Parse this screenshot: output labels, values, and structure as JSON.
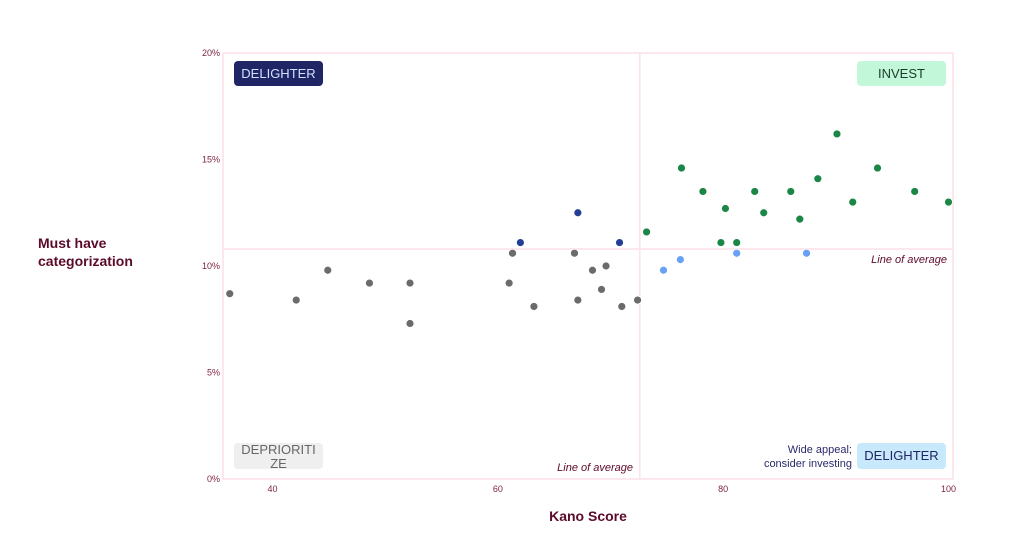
{
  "chart_data": {
    "type": "scatter",
    "xlabel": "Kano Score",
    "ylabel": "Must have categorization",
    "xlim": [
      35.6,
      100.4
    ],
    "ylim": [
      0,
      20
    ],
    "x_ticks": [
      40,
      60,
      80,
      100
    ],
    "y_ticks": [
      0,
      5,
      10,
      15,
      20
    ],
    "y_tick_labels": [
      "0%",
      "5%",
      "10%",
      "15%",
      "20%"
    ],
    "grid": false,
    "average_x": 72.6,
    "average_y": 10.8,
    "average_label": "Line of average",
    "quadrant_labels": {
      "top_left": "DELIGHTER",
      "top_right": "INVEST",
      "bottom_left": "DEPRIORITIZE",
      "bottom_right": "DELIGHTER",
      "bottom_right_note_1": "Wide appeal;",
      "bottom_right_note_2": "consider investing"
    },
    "colors": {
      "deprioritize": "#6b6b6b",
      "delighter_dark": "#233f96",
      "delighter_light": "#69a2f4",
      "invest": "#1b8747",
      "axis_text": "#7a1f3d",
      "frame": "#fbe1e6"
    },
    "series": [
      {
        "name": "deprioritize",
        "color": "#6b6b6b",
        "points": [
          [
            36.2,
            8.7
          ],
          [
            42.1,
            8.4
          ],
          [
            44.9,
            9.8
          ],
          [
            48.6,
            9.2
          ],
          [
            52.2,
            9.2
          ],
          [
            52.2,
            7.3
          ],
          [
            61.0,
            9.2
          ],
          [
            61.3,
            10.6
          ],
          [
            63.2,
            8.1
          ],
          [
            66.8,
            10.6
          ],
          [
            67.1,
            8.4
          ],
          [
            68.4,
            9.8
          ],
          [
            69.2,
            8.9
          ],
          [
            69.6,
            10.0
          ],
          [
            71.0,
            8.1
          ],
          [
            72.4,
            8.4
          ]
        ]
      },
      {
        "name": "delighter_dark",
        "color": "#233f96",
        "points": [
          [
            62.0,
            11.1
          ],
          [
            67.1,
            12.5
          ],
          [
            70.8,
            11.1
          ]
        ]
      },
      {
        "name": "delighter_light",
        "color": "#69a2f4",
        "points": [
          [
            74.7,
            9.8
          ],
          [
            76.2,
            10.3
          ],
          [
            81.2,
            10.6
          ],
          [
            87.4,
            10.6
          ]
        ]
      },
      {
        "name": "invest",
        "color": "#1b8747",
        "points": [
          [
            73.2,
            11.6
          ],
          [
            76.3,
            14.6
          ],
          [
            78.2,
            13.5
          ],
          [
            80.2,
            12.7
          ],
          [
            79.8,
            11.1
          ],
          [
            81.2,
            11.1
          ],
          [
            82.8,
            13.5
          ],
          [
            83.6,
            12.5
          ],
          [
            86.0,
            13.5
          ],
          [
            86.8,
            12.2
          ],
          [
            88.4,
            14.1
          ],
          [
            90.1,
            16.2
          ],
          [
            91.5,
            13.0
          ],
          [
            93.7,
            14.6
          ],
          [
            97.0,
            13.5
          ],
          [
            100,
            13.0
          ]
        ]
      }
    ]
  }
}
